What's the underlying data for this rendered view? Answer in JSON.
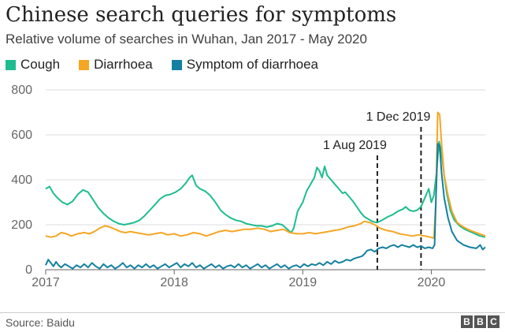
{
  "title": "Chinese search queries for symptoms",
  "subtitle": "Relative volume of searches in Wuhan, Jan 2017 - May 2020",
  "source": "Source: Baidu",
  "logo": [
    "B",
    "B",
    "C"
  ],
  "chart_data": {
    "type": "line",
    "title": "Chinese search queries for symptoms",
    "xlabel": "",
    "ylabel": "",
    "xlim": [
      2017.0,
      2020.42
    ],
    "ylim": [
      0,
      800
    ],
    "yticks": [
      0,
      200,
      400,
      600,
      800
    ],
    "ytick_labels": [
      "0",
      "200",
      "400",
      "600",
      "800"
    ],
    "xticks": [
      2017,
      2018,
      2019,
      2020
    ],
    "xtick_labels": [
      "2017",
      "2018",
      "2019",
      "2020"
    ],
    "grid": true,
    "legend_position": "top-left",
    "annotations": [
      {
        "x": 2019.58,
        "label": "1 Aug 2019"
      },
      {
        "x": 2019.92,
        "label": "1 Dec 2019"
      }
    ],
    "series": [
      {
        "name": "Cough",
        "color": "#1dbd8f",
        "points": [
          [
            2017.0,
            360
          ],
          [
            2017.03,
            370
          ],
          [
            2017.06,
            340
          ],
          [
            2017.09,
            320
          ],
          [
            2017.13,
            300
          ],
          [
            2017.17,
            290
          ],
          [
            2017.21,
            305
          ],
          [
            2017.25,
            335
          ],
          [
            2017.29,
            355
          ],
          [
            2017.33,
            345
          ],
          [
            2017.37,
            310
          ],
          [
            2017.41,
            275
          ],
          [
            2017.45,
            250
          ],
          [
            2017.49,
            230
          ],
          [
            2017.53,
            215
          ],
          [
            2017.57,
            205
          ],
          [
            2017.61,
            200
          ],
          [
            2017.65,
            205
          ],
          [
            2017.69,
            210
          ],
          [
            2017.73,
            220
          ],
          [
            2017.77,
            240
          ],
          [
            2017.81,
            265
          ],
          [
            2017.85,
            290
          ],
          [
            2017.89,
            315
          ],
          [
            2017.93,
            330
          ],
          [
            2017.97,
            335
          ],
          [
            2018.01,
            345
          ],
          [
            2018.05,
            360
          ],
          [
            2018.09,
            385
          ],
          [
            2018.12,
            410
          ],
          [
            2018.14,
            420
          ],
          [
            2018.17,
            375
          ],
          [
            2018.2,
            360
          ],
          [
            2018.24,
            350
          ],
          [
            2018.28,
            330
          ],
          [
            2018.32,
            300
          ],
          [
            2018.36,
            265
          ],
          [
            2018.4,
            245
          ],
          [
            2018.44,
            230
          ],
          [
            2018.48,
            220
          ],
          [
            2018.52,
            215
          ],
          [
            2018.56,
            205
          ],
          [
            2018.6,
            200
          ],
          [
            2018.64,
            195
          ],
          [
            2018.68,
            195
          ],
          [
            2018.72,
            190
          ],
          [
            2018.76,
            195
          ],
          [
            2018.8,
            205
          ],
          [
            2018.84,
            200
          ],
          [
            2018.88,
            180
          ],
          [
            2018.91,
            165
          ],
          [
            2018.93,
            185
          ],
          [
            2018.96,
            260
          ],
          [
            2019.0,
            300
          ],
          [
            2019.03,
            350
          ],
          [
            2019.06,
            380
          ],
          [
            2019.09,
            410
          ],
          [
            2019.11,
            455
          ],
          [
            2019.13,
            440
          ],
          [
            2019.15,
            410
          ],
          [
            2019.17,
            460
          ],
          [
            2019.19,
            420
          ],
          [
            2019.22,
            400
          ],
          [
            2019.25,
            380
          ],
          [
            2019.28,
            360
          ],
          [
            2019.31,
            340
          ],
          [
            2019.33,
            345
          ],
          [
            2019.36,
            325
          ],
          [
            2019.39,
            305
          ],
          [
            2019.42,
            280
          ],
          [
            2019.45,
            255
          ],
          [
            2019.48,
            235
          ],
          [
            2019.51,
            225
          ],
          [
            2019.54,
            215
          ],
          [
            2019.57,
            210
          ],
          [
            2019.6,
            215
          ],
          [
            2019.63,
            225
          ],
          [
            2019.66,
            235
          ],
          [
            2019.7,
            245
          ],
          [
            2019.74,
            260
          ],
          [
            2019.78,
            270
          ],
          [
            2019.8,
            280
          ],
          [
            2019.83,
            265
          ],
          [
            2019.86,
            260
          ],
          [
            2019.89,
            265
          ],
          [
            2019.92,
            280
          ],
          [
            2019.95,
            320
          ],
          [
            2019.98,
            360
          ],
          [
            2020.0,
            300
          ],
          [
            2020.02,
            330
          ],
          [
            2020.04,
            430
          ],
          [
            2020.06,
            570
          ],
          [
            2020.08,
            520
          ],
          [
            2020.1,
            420
          ],
          [
            2020.12,
            340
          ],
          [
            2020.15,
            260
          ],
          [
            2020.18,
            220
          ],
          [
            2020.22,
            195
          ],
          [
            2020.26,
            180
          ],
          [
            2020.3,
            170
          ],
          [
            2020.34,
            160
          ],
          [
            2020.38,
            150
          ],
          [
            2020.42,
            145
          ]
        ]
      },
      {
        "name": "Diarrhoea",
        "color": "#f5a623",
        "points": [
          [
            2017.0,
            150
          ],
          [
            2017.04,
            145
          ],
          [
            2017.08,
            150
          ],
          [
            2017.12,
            165
          ],
          [
            2017.16,
            160
          ],
          [
            2017.2,
            150
          ],
          [
            2017.25,
            160
          ],
          [
            2017.3,
            165
          ],
          [
            2017.34,
            160
          ],
          [
            2017.38,
            170
          ],
          [
            2017.42,
            185
          ],
          [
            2017.46,
            195
          ],
          [
            2017.5,
            190
          ],
          [
            2017.54,
            180
          ],
          [
            2017.58,
            170
          ],
          [
            2017.62,
            165
          ],
          [
            2017.66,
            170
          ],
          [
            2017.7,
            165
          ],
          [
            2017.75,
            160
          ],
          [
            2017.8,
            155
          ],
          [
            2017.85,
            160
          ],
          [
            2017.9,
            165
          ],
          [
            2017.95,
            155
          ],
          [
            2018.0,
            160
          ],
          [
            2018.05,
            150
          ],
          [
            2018.1,
            155
          ],
          [
            2018.15,
            165
          ],
          [
            2018.2,
            160
          ],
          [
            2018.25,
            150
          ],
          [
            2018.3,
            160
          ],
          [
            2018.35,
            170
          ],
          [
            2018.4,
            175
          ],
          [
            2018.45,
            170
          ],
          [
            2018.5,
            175
          ],
          [
            2018.55,
            180
          ],
          [
            2018.6,
            180
          ],
          [
            2018.65,
            185
          ],
          [
            2018.7,
            180
          ],
          [
            2018.75,
            170
          ],
          [
            2018.8,
            175
          ],
          [
            2018.85,
            180
          ],
          [
            2018.9,
            165
          ],
          [
            2018.95,
            160
          ],
          [
            2019.0,
            160
          ],
          [
            2019.05,
            165
          ],
          [
            2019.1,
            160
          ],
          [
            2019.15,
            165
          ],
          [
            2019.2,
            170
          ],
          [
            2019.25,
            175
          ],
          [
            2019.3,
            180
          ],
          [
            2019.35,
            190
          ],
          [
            2019.4,
            195
          ],
          [
            2019.45,
            205
          ],
          [
            2019.48,
            215
          ],
          [
            2019.52,
            210
          ],
          [
            2019.56,
            200
          ],
          [
            2019.6,
            185
          ],
          [
            2019.65,
            175
          ],
          [
            2019.7,
            170
          ],
          [
            2019.75,
            160
          ],
          [
            2019.8,
            155
          ],
          [
            2019.85,
            150
          ],
          [
            2019.9,
            155
          ],
          [
            2019.95,
            150
          ],
          [
            2019.99,
            145
          ],
          [
            2020.02,
            140
          ],
          [
            2020.035,
            300
          ],
          [
            2020.05,
            700
          ],
          [
            2020.065,
            690
          ],
          [
            2020.08,
            560
          ],
          [
            2020.1,
            420
          ],
          [
            2020.13,
            330
          ],
          [
            2020.16,
            260
          ],
          [
            2020.2,
            210
          ],
          [
            2020.25,
            190
          ],
          [
            2020.3,
            175
          ],
          [
            2020.35,
            165
          ],
          [
            2020.42,
            150
          ]
        ]
      },
      {
        "name": "Symptom of diarrhoea",
        "color": "#1380a1",
        "points": [
          [
            2017.0,
            20
          ],
          [
            2017.02,
            45
          ],
          [
            2017.04,
            30
          ],
          [
            2017.06,
            15
          ],
          [
            2017.08,
            35
          ],
          [
            2017.1,
            20
          ],
          [
            2017.12,
            10
          ],
          [
            2017.15,
            25
          ],
          [
            2017.18,
            15
          ],
          [
            2017.21,
            5
          ],
          [
            2017.24,
            20
          ],
          [
            2017.27,
            10
          ],
          [
            2017.3,
            25
          ],
          [
            2017.33,
            10
          ],
          [
            2017.36,
            30
          ],
          [
            2017.39,
            15
          ],
          [
            2017.42,
            5
          ],
          [
            2017.45,
            25
          ],
          [
            2017.48,
            10
          ],
          [
            2017.51,
            20
          ],
          [
            2017.54,
            5
          ],
          [
            2017.57,
            15
          ],
          [
            2017.6,
            30
          ],
          [
            2017.63,
            10
          ],
          [
            2017.66,
            20
          ],
          [
            2017.69,
            5
          ],
          [
            2017.72,
            20
          ],
          [
            2017.75,
            10
          ],
          [
            2017.78,
            25
          ],
          [
            2017.81,
            10
          ],
          [
            2017.84,
            20
          ],
          [
            2017.87,
            5
          ],
          [
            2017.9,
            15
          ],
          [
            2017.93,
            25
          ],
          [
            2017.96,
            10
          ],
          [
            2017.99,
            20
          ],
          [
            2018.02,
            30
          ],
          [
            2018.05,
            10
          ],
          [
            2018.08,
            25
          ],
          [
            2018.11,
            15
          ],
          [
            2018.14,
            30
          ],
          [
            2018.17,
            10
          ],
          [
            2018.2,
            20
          ],
          [
            2018.23,
            5
          ],
          [
            2018.26,
            15
          ],
          [
            2018.29,
            25
          ],
          [
            2018.32,
            10
          ],
          [
            2018.35,
            20
          ],
          [
            2018.38,
            5
          ],
          [
            2018.41,
            15
          ],
          [
            2018.44,
            20
          ],
          [
            2018.47,
            10
          ],
          [
            2018.5,
            25
          ],
          [
            2018.53,
            10
          ],
          [
            2018.56,
            20
          ],
          [
            2018.59,
            5
          ],
          [
            2018.62,
            15
          ],
          [
            2018.65,
            25
          ],
          [
            2018.68,
            10
          ],
          [
            2018.71,
            20
          ],
          [
            2018.74,
            5
          ],
          [
            2018.77,
            15
          ],
          [
            2018.8,
            25
          ],
          [
            2018.83,
            10
          ],
          [
            2018.86,
            20
          ],
          [
            2018.89,
            5
          ],
          [
            2018.92,
            15
          ],
          [
            2018.95,
            20
          ],
          [
            2018.98,
            10
          ],
          [
            2019.01,
            25
          ],
          [
            2019.04,
            15
          ],
          [
            2019.07,
            25
          ],
          [
            2019.1,
            20
          ],
          [
            2019.13,
            30
          ],
          [
            2019.16,
            20
          ],
          [
            2019.19,
            35
          ],
          [
            2019.22,
            25
          ],
          [
            2019.25,
            40
          ],
          [
            2019.28,
            30
          ],
          [
            2019.31,
            35
          ],
          [
            2019.34,
            45
          ],
          [
            2019.37,
            40
          ],
          [
            2019.4,
            50
          ],
          [
            2019.43,
            55
          ],
          [
            2019.46,
            60
          ],
          [
            2019.48,
            70
          ],
          [
            2019.5,
            85
          ],
          [
            2019.53,
            90
          ],
          [
            2019.56,
            80
          ],
          [
            2019.59,
            95
          ],
          [
            2019.62,
            100
          ],
          [
            2019.65,
            95
          ],
          [
            2019.68,
            105
          ],
          [
            2019.71,
            110
          ],
          [
            2019.74,
            100
          ],
          [
            2019.77,
            110
          ],
          [
            2019.8,
            105
          ],
          [
            2019.83,
            100
          ],
          [
            2019.86,
            110
          ],
          [
            2019.89,
            100
          ],
          [
            2019.92,
            105
          ],
          [
            2019.95,
            95
          ],
          [
            2019.98,
            100
          ],
          [
            2020.01,
            95
          ],
          [
            2020.025,
            110
          ],
          [
            2020.035,
            300
          ],
          [
            2020.05,
            560
          ],
          [
            2020.065,
            550
          ],
          [
            2020.08,
            430
          ],
          [
            2020.1,
            320
          ],
          [
            2020.13,
            230
          ],
          [
            2020.16,
            170
          ],
          [
            2020.2,
            130
          ],
          [
            2020.25,
            110
          ],
          [
            2020.3,
            100
          ],
          [
            2020.35,
            95
          ],
          [
            2020.38,
            110
          ],
          [
            2020.4,
            90
          ],
          [
            2020.42,
            100
          ]
        ]
      }
    ]
  }
}
